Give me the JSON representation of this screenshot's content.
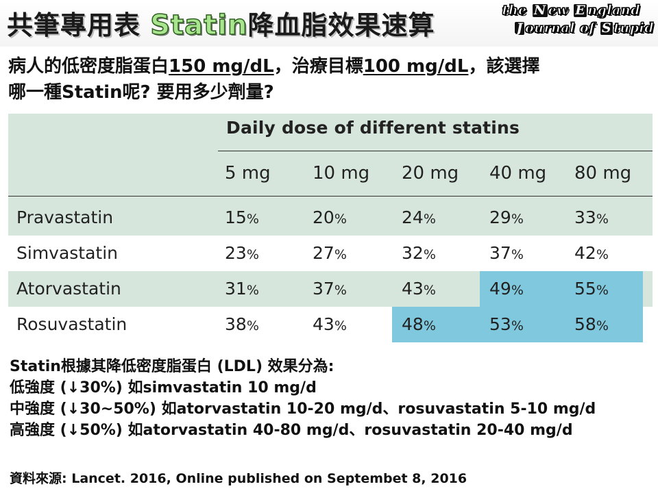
{
  "header": {
    "title_before": "共筆專用表 ",
    "title_statin": "Statin",
    "title_after": "降血脂效果速算",
    "logo": {
      "line1_a": "the ",
      "line1_cap1": "N",
      "line1_b": "ew ",
      "line1_cap2": "E",
      "line1_c": "ngland",
      "line2_cap1": "J",
      "line2_a": "ournal of ",
      "line2_cap2": "S",
      "line2_b": "tupid"
    }
  },
  "question": {
    "p1": "病人的低密度脂蛋白",
    "ldl_value": "150 mg/dL",
    "p2": "，治療目標",
    "target_value": "100 mg/dL",
    "p3": "，該選擇",
    "line2": "哪一種Statin呢? 要用多少劑量?"
  },
  "table": {
    "group_title": "Daily dose of different statins",
    "doses": [
      "5 mg",
      "10 mg",
      "20 mg",
      "40 mg",
      "80 mg"
    ],
    "rows": [
      {
        "name": "Pravastatin",
        "values": [
          "15",
          "20",
          "24",
          "29",
          "33"
        ],
        "hl": [
          false,
          false,
          false,
          false,
          false
        ]
      },
      {
        "name": "Simvastatin",
        "values": [
          "23",
          "27",
          "32",
          "37",
          "42"
        ],
        "hl": [
          false,
          false,
          false,
          false,
          false
        ]
      },
      {
        "name": "Atorvastatin",
        "values": [
          "31",
          "37",
          "43",
          "49",
          "55"
        ],
        "hl": [
          false,
          false,
          false,
          true,
          true
        ]
      },
      {
        "name": "Rosuvastatin",
        "values": [
          "38",
          "43",
          "48",
          "53",
          "58"
        ],
        "hl": [
          false,
          false,
          true,
          true,
          true
        ]
      }
    ],
    "pct_sign": "%",
    "colors": {
      "panel": "#d6e6dd",
      "white_row": "#ffffff",
      "highlight": "#7fc8dd"
    }
  },
  "info": {
    "line1": "Statin根據其降低密度脂蛋白 (LDL) 效果分為:",
    "line2": "低強度 (↓30%) 如simvastatin 10 mg/d",
    "line3": "中強度 (↓30~50%) 如atorvastatin 10-20 mg/d、rosuvastatin 5-10 mg/d",
    "line4": "高強度 (↓50%) 如atorvastatin 40-80 mg/d、rosuvastatin 20-40 mg/d"
  },
  "source": "資料來源: Lancet. 2016, Online published on Septembet 8, 2016"
}
